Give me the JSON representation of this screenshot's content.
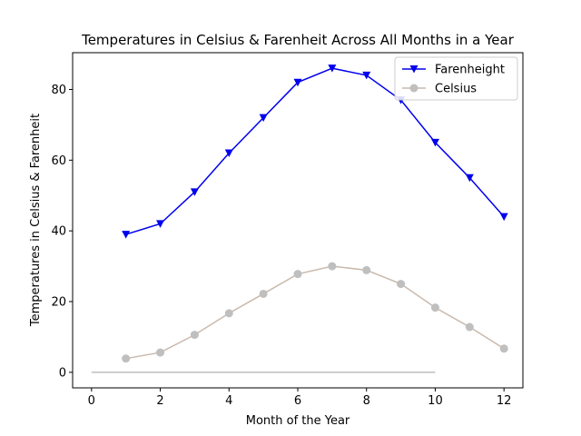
{
  "chart_data": {
    "type": "line",
    "title": "Temperatures in Celsius & Farenheit Across All Months in a Year",
    "xlabel": "Month of the Year",
    "ylabel": "Temperatures in Celsius & Farenheit",
    "xlim": [
      -0.55,
      12.55
    ],
    "ylim": [
      -4.4,
      90.4
    ],
    "xticks": [
      0,
      2,
      4,
      6,
      8,
      10,
      12
    ],
    "yticks": [
      0,
      20,
      40,
      60,
      80
    ],
    "grid": false,
    "legend_position": "top-right",
    "series": [
      {
        "name": "Farenheight",
        "color": "#0000ee",
        "marker": "triangle-down",
        "x": [
          1,
          2,
          3,
          4,
          5,
          6,
          7,
          8,
          9,
          10,
          11,
          12
        ],
        "y": [
          39,
          42,
          51,
          62,
          72,
          82,
          86,
          84,
          77,
          65,
          55,
          44
        ]
      },
      {
        "name": "Celsius",
        "color": "#bfbfbf",
        "line_color": "#c9b9ac",
        "marker": "circle",
        "x": [
          1,
          2,
          3,
          4,
          5,
          6,
          7,
          8,
          9,
          10,
          11,
          12
        ],
        "y": [
          3.9,
          5.6,
          10.6,
          16.7,
          22.2,
          27.8,
          30.0,
          28.9,
          25.0,
          18.3,
          12.8,
          6.7
        ]
      }
    ],
    "reference_line": {
      "color": "#bfbfbf",
      "x": [
        0,
        10
      ],
      "y": [
        0,
        0
      ]
    }
  }
}
